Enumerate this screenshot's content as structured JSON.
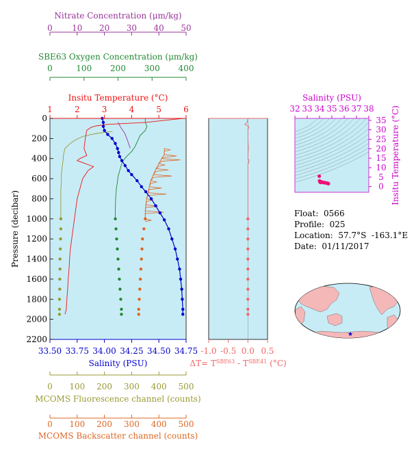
{
  "info": {
    "float": "Float:  0566",
    "profile": "Profile:  025",
    "location": "Location:  57.7°S  -163.1°E",
    "date": "Date:  01/11/2017"
  },
  "colors": {
    "nitrate": "#993399",
    "oxygen": "#228833",
    "temperature": "#ee1111",
    "salinity": "#0000cc",
    "fluorescence": "#999933",
    "backscatter": "#dd6622",
    "dt": "#ee6666",
    "ts_axis": "#cc00cc",
    "plot_bg": "#c8ecf6",
    "map_land": "#f4b8b8",
    "map_ocean": "#c8ecf6"
  },
  "chart_data": [
    {
      "type": "line",
      "panel": "profile",
      "y_axis": {
        "label": "Pressure (decibar)",
        "ticks": [
          "0",
          "200",
          "400",
          "600",
          "800",
          "1000",
          "1200",
          "1400",
          "1600",
          "1800",
          "2000",
          "2200"
        ],
        "lim": [
          0,
          2200
        ],
        "reversed": true
      },
      "axes": {
        "nitrate": {
          "title": "Nitrate Concentration (μm/kg)",
          "ticks": [
            "0",
            "10",
            "20",
            "30",
            "40",
            "50"
          ],
          "lim": [
            0,
            50
          ]
        },
        "oxygen": {
          "title": "SBE63 Oxygen Concentration (μm/kg)",
          "ticks": [
            "0",
            "100",
            "200",
            "300",
            "400"
          ],
          "lim": [
            0,
            400
          ]
        },
        "temperature": {
          "title": "Insitu Temperature (°C)",
          "ticks": [
            "1",
            "2",
            "3",
            "4",
            "5",
            "6"
          ],
          "lim": [
            1,
            6
          ]
        },
        "salinity": {
          "title": "Salinity (PSU)",
          "ticks": [
            "33.50",
            "33.75",
            "34.00",
            "34.25",
            "34.50",
            "34.75"
          ],
          "lim": [
            33.5,
            34.75
          ]
        },
        "fluorescence": {
          "title": "MCOMS Fluorescence channel (counts)",
          "ticks": [
            "0",
            "100",
            "200",
            "300",
            "400",
            "500"
          ],
          "lim": [
            0,
            500
          ]
        },
        "backscatter": {
          "title": "MCOMS Backscatter channel (counts)",
          "ticks": [
            "0",
            "100",
            "200",
            "300",
            "400",
            "500"
          ],
          "lim": [
            0,
            500
          ]
        }
      },
      "series": [
        {
          "key": "temperature",
          "axis": "temperature",
          "style": "line",
          "points": [
            [
              5.9,
              0
            ],
            [
              5.2,
              20
            ],
            [
              4.5,
              40
            ],
            [
              3.1,
              60
            ],
            [
              2.7,
              75
            ],
            [
              2.5,
              90
            ],
            [
              2.35,
              120
            ],
            [
              2.3,
              200
            ],
            [
              2.25,
              300
            ],
            [
              2.35,
              370
            ],
            [
              2.1,
              400
            ],
            [
              2.0,
              420
            ],
            [
              2.3,
              450
            ],
            [
              2.6,
              480
            ],
            [
              2.4,
              520
            ],
            [
              2.2,
              600
            ],
            [
              2.1,
              700
            ],
            [
              2.0,
              800
            ],
            [
              1.95,
              900
            ],
            [
              1.9,
              1000
            ],
            [
              1.85,
              1100
            ],
            [
              1.8,
              1200
            ],
            [
              1.75,
              1300
            ],
            [
              1.72,
              1400
            ],
            [
              1.7,
              1500
            ],
            [
              1.67,
              1600
            ],
            [
              1.65,
              1700
            ],
            [
              1.62,
              1800
            ],
            [
              1.6,
              1900
            ],
            [
              1.55,
              1950
            ]
          ]
        },
        {
          "key": "salinity",
          "axis": "salinity",
          "style": "line-dots",
          "points": [
            [
              33.98,
              0
            ],
            [
              33.99,
              40
            ],
            [
              33.99,
              80
            ],
            [
              34.0,
              120
            ],
            [
              34.03,
              160
            ],
            [
              34.07,
              200
            ],
            [
              34.1,
              250
            ],
            [
              34.12,
              300
            ],
            [
              34.13,
              340
            ],
            [
              34.14,
              380
            ],
            [
              34.16,
              420
            ],
            [
              34.19,
              470
            ],
            [
              34.22,
              520
            ],
            [
              34.25,
              560
            ],
            [
              34.3,
              620
            ],
            [
              34.34,
              680
            ],
            [
              34.38,
              730
            ],
            [
              34.43,
              800
            ],
            [
              34.47,
              870
            ],
            [
              34.51,
              940
            ],
            [
              34.55,
              1010
            ],
            [
              34.59,
              1100
            ],
            [
              34.62,
              1200
            ],
            [
              34.65,
              1300
            ],
            [
              34.67,
              1400
            ],
            [
              34.69,
              1500
            ],
            [
              34.7,
              1600
            ],
            [
              34.71,
              1700
            ],
            [
              34.715,
              1800
            ],
            [
              34.72,
              1900
            ],
            [
              34.72,
              1950
            ]
          ]
        },
        {
          "key": "oxygen",
          "axis": "oxygen",
          "style": "line-then-dots",
          "dot_start": 1000,
          "points": [
            [
              280,
              0
            ],
            [
              280,
              40
            ],
            [
              285,
              80
            ],
            [
              280,
              120
            ],
            [
              265,
              170
            ],
            [
              258,
              220
            ],
            [
              250,
              280
            ],
            [
              240,
              330
            ],
            [
              225,
              380
            ],
            [
              215,
              420
            ],
            [
              210,
              460
            ],
            [
              205,
              520
            ],
            [
              200,
              580
            ],
            [
              198,
              640
            ],
            [
              195,
              700
            ],
            [
              193,
              800
            ],
            [
              192,
              900
            ],
            [
              192,
              1000
            ],
            [
              194,
              1100
            ],
            [
              196,
              1200
            ],
            [
              198,
              1300
            ],
            [
              200,
              1400
            ],
            [
              202,
              1500
            ],
            [
              204,
              1600
            ],
            [
              206,
              1700
            ],
            [
              208,
              1800
            ],
            [
              210,
              1900
            ],
            [
              210,
              1950
            ]
          ]
        },
        {
          "key": "nitrate",
          "axis": "nitrate",
          "style": "line",
          "points": [
            [
              25.0,
              40
            ],
            [
              26.0,
              90
            ],
            [
              27.5,
              150
            ],
            [
              28.5,
              220
            ],
            [
              29.5,
              300
            ]
          ]
        },
        {
          "key": "fluorescence",
          "axis": "fluorescence",
          "style": "line-then-dots",
          "dot_start": 1000,
          "points": [
            [
              230,
              130
            ],
            [
              170,
              150
            ],
            [
              120,
              180
            ],
            [
              90,
              220
            ],
            [
              70,
              260
            ],
            [
              55,
              300
            ],
            [
              50,
              360
            ],
            [
              48,
              420
            ],
            [
              45,
              480
            ],
            [
              42,
              560
            ],
            [
              42,
              640
            ],
            [
              40,
              700
            ],
            [
              40,
              800
            ],
            [
              40,
              900
            ],
            [
              40,
              1000
            ],
            [
              40,
              1100
            ],
            [
              39,
              1200
            ],
            [
              38,
              1300
            ],
            [
              37,
              1400
            ],
            [
              37,
              1500
            ],
            [
              36,
              1600
            ],
            [
              36,
              1700
            ],
            [
              35,
              1800
            ],
            [
              35,
              1900
            ],
            [
              35,
              1950
            ]
          ]
        },
        {
          "key": "backscatter",
          "axis": "backscatter",
          "style": "noisy-then-dots",
          "dot_start": 1000,
          "points": [
            [
              420,
              300
            ],
            [
              420,
              360
            ],
            [
              410,
              400
            ],
            [
              400,
              450
            ],
            [
              390,
              500
            ],
            [
              380,
              560
            ],
            [
              370,
              620
            ],
            [
              365,
              680
            ],
            [
              360,
              740
            ],
            [
              355,
              800
            ],
            [
              352,
              860
            ],
            [
              350,
              920
            ],
            [
              350,
              1000
            ],
            [
              345,
              1100
            ],
            [
              340,
              1200
            ],
            [
              338,
              1300
            ],
            [
              336,
              1400
            ],
            [
              334,
              1500
            ],
            [
              332,
              1600
            ],
            [
              330,
              1700
            ],
            [
              328,
              1800
            ],
            [
              326,
              1900
            ],
            [
              326,
              1950
            ]
          ]
        }
      ]
    },
    {
      "type": "line",
      "panel": "delta-t",
      "x_axis": {
        "title": "ΔT= T^SBE63 - T^SBE41 (°C)",
        "ticks": [
          "-1.0",
          "-0.5",
          "0.0",
          "0.5"
        ],
        "lim": [
          -1.0,
          0.5
        ]
      },
      "y_axis": {
        "lim": [
          0,
          2200
        ],
        "reversed": true
      },
      "series": [
        {
          "key": "dt",
          "style": "line-then-dots",
          "dot_start": 1000,
          "points": [
            [
              0.0,
              0
            ],
            [
              -0.02,
              40
            ],
            [
              -0.08,
              60
            ],
            [
              0.02,
              80
            ],
            [
              0.0,
              120
            ],
            [
              0.0,
              200
            ],
            [
              0.01,
              300
            ],
            [
              0.0,
              400
            ],
            [
              0.03,
              420
            ],
            [
              0.0,
              460
            ],
            [
              0.0,
              600
            ],
            [
              0.0,
              800
            ],
            [
              0.0,
              1000
            ],
            [
              0.0,
              1100
            ],
            [
              0.0,
              1200
            ],
            [
              0.0,
              1300
            ],
            [
              0.0,
              1400
            ],
            [
              0.0,
              1500
            ],
            [
              0.0,
              1600
            ],
            [
              0.0,
              1700
            ],
            [
              0.0,
              1800
            ],
            [
              0.0,
              1900
            ],
            [
              0.0,
              1950
            ]
          ]
        }
      ]
    },
    {
      "type": "scatter",
      "panel": "ts-diagram",
      "x_axis": {
        "title": "Salinity (PSU)",
        "ticks": [
          "32",
          "33",
          "34",
          "35",
          "36",
          "37",
          "38"
        ],
        "lim": [
          32,
          38
        ]
      },
      "y_axis": {
        "title": "Insitu Temperature (°C)",
        "ticks": [
          "0",
          "5",
          "10",
          "15",
          "20",
          "25",
          "30",
          "35"
        ],
        "lim": [
          -3,
          36
        ]
      },
      "series": [
        {
          "key": "ts",
          "points": [
            [
              33.98,
              5.5
            ],
            [
              34.0,
              3.0
            ],
            [
              34.05,
              2.3
            ],
            [
              34.1,
              2.2
            ],
            [
              34.2,
              2.4
            ],
            [
              34.3,
              2.2
            ],
            [
              34.4,
              2.1
            ],
            [
              34.5,
              1.95
            ],
            [
              34.6,
              1.85
            ],
            [
              34.65,
              1.75
            ],
            [
              34.7,
              1.65
            ],
            [
              34.72,
              1.55
            ],
            [
              34.1,
              2.6
            ],
            [
              34.25,
              2.3
            ]
          ]
        }
      ]
    }
  ]
}
